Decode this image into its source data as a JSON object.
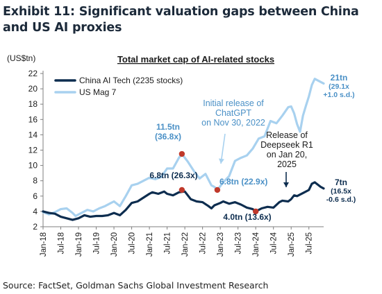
{
  "exhibit": {
    "title": "Exhibit 11: Significant valuation gaps between China and US AI proxies",
    "source": "Source: FactSet, Goldman Sachs Global Investment Research"
  },
  "chart_data": {
    "type": "line",
    "title": "Total market cap of AI-related stocks",
    "ylabel": "(US$tn)",
    "xlabel": "",
    "ylim": [
      2,
      22
    ],
    "yticks": [
      2,
      4,
      6,
      8,
      10,
      12,
      14,
      16,
      18,
      20,
      22
    ],
    "xlim": [
      "2018-01",
      "2025-12"
    ],
    "xticks": [
      "Jan-18",
      "Jul-18",
      "Jan-19",
      "Jul-19",
      "Jan-20",
      "Jul-20",
      "Jan-21",
      "Jul-21",
      "Jan-22",
      "Jul-22",
      "Jan-23",
      "Jul-23",
      "Jan-24",
      "Jul-24",
      "Jan-25",
      "Jul-25"
    ],
    "grid": false,
    "legend_position": "top-left",
    "series": [
      {
        "name": "China AI Tech (2235 stocks)",
        "color": "#0d2d4f",
        "points": [
          [
            "2018-01",
            4.0
          ],
          [
            "2018-03",
            3.8
          ],
          [
            "2018-05",
            3.7
          ],
          [
            "2018-07",
            3.3
          ],
          [
            "2018-09",
            3.1
          ],
          [
            "2018-11",
            2.9
          ],
          [
            "2019-01",
            3.1
          ],
          [
            "2019-03",
            3.5
          ],
          [
            "2019-05",
            3.3
          ],
          [
            "2019-07",
            3.4
          ],
          [
            "2019-09",
            3.4
          ],
          [
            "2019-11",
            3.5
          ],
          [
            "2020-01",
            3.8
          ],
          [
            "2020-03",
            3.5
          ],
          [
            "2020-05",
            4.2
          ],
          [
            "2020-07",
            5.1
          ],
          [
            "2020-09",
            5.3
          ],
          [
            "2020-11",
            5.8
          ],
          [
            "2021-01",
            6.3
          ],
          [
            "2021-02",
            6.5
          ],
          [
            "2021-04",
            6.3
          ],
          [
            "2021-06",
            6.6
          ],
          [
            "2021-07",
            6.3
          ],
          [
            "2021-09",
            6.1
          ],
          [
            "2021-11",
            6.5
          ],
          [
            "2022-01",
            6.6
          ],
          [
            "2022-03",
            5.6
          ],
          [
            "2022-05",
            5.3
          ],
          [
            "2022-07",
            5.2
          ],
          [
            "2022-09",
            4.7
          ],
          [
            "2022-10",
            4.4
          ],
          [
            "2022-11",
            4.8
          ],
          [
            "2023-01",
            5.1
          ],
          [
            "2023-02",
            5.3
          ],
          [
            "2023-04",
            5.0
          ],
          [
            "2023-06",
            5.2
          ],
          [
            "2023-08",
            4.9
          ],
          [
            "2023-10",
            4.5
          ],
          [
            "2023-12",
            4.3
          ],
          [
            "2024-01",
            4.0
          ],
          [
            "2024-03",
            4.4
          ],
          [
            "2024-05",
            4.6
          ],
          [
            "2024-07",
            4.5
          ],
          [
            "2024-09",
            5.2
          ],
          [
            "2024-10",
            5.4
          ],
          [
            "2024-12",
            5.3
          ],
          [
            "2025-01",
            5.6
          ],
          [
            "2025-02",
            6.1
          ],
          [
            "2025-03",
            6.0
          ],
          [
            "2025-05",
            6.4
          ],
          [
            "2025-07",
            6.8
          ],
          [
            "2025-08",
            7.6
          ],
          [
            "2025-09",
            7.8
          ],
          [
            "2025-11",
            7.2
          ],
          [
            "2025-12",
            7.0
          ]
        ]
      },
      {
        "name": "US Mag 7",
        "color": "#a8d1ef",
        "points": [
          [
            "2018-01",
            3.9
          ],
          [
            "2018-03",
            3.6
          ],
          [
            "2018-05",
            3.9
          ],
          [
            "2018-07",
            4.3
          ],
          [
            "2018-09",
            4.4
          ],
          [
            "2018-11",
            3.8
          ],
          [
            "2018-12",
            3.4
          ],
          [
            "2019-02",
            3.8
          ],
          [
            "2019-04",
            4.2
          ],
          [
            "2019-06",
            4.0
          ],
          [
            "2019-08",
            4.4
          ],
          [
            "2019-10",
            4.7
          ],
          [
            "2019-12",
            5.1
          ],
          [
            "2020-01",
            5.3
          ],
          [
            "2020-03",
            4.7
          ],
          [
            "2020-05",
            6.0
          ],
          [
            "2020-07",
            7.4
          ],
          [
            "2020-09",
            7.6
          ],
          [
            "2020-11",
            8.0
          ],
          [
            "2021-01",
            8.4
          ],
          [
            "2021-03",
            8.2
          ],
          [
            "2021-05",
            8.5
          ],
          [
            "2021-07",
            9.6
          ],
          [
            "2021-09",
            9.6
          ],
          [
            "2021-11",
            11.0
          ],
          [
            "2021-12",
            11.5
          ],
          [
            "2022-02",
            10.5
          ],
          [
            "2022-04",
            9.3
          ],
          [
            "2022-06",
            8.3
          ],
          [
            "2022-08",
            8.9
          ],
          [
            "2022-10",
            7.4
          ],
          [
            "2022-11",
            7.2
          ],
          [
            "2022-12",
            6.8
          ],
          [
            "2023-02",
            7.8
          ],
          [
            "2023-04",
            8.6
          ],
          [
            "2023-06",
            10.6
          ],
          [
            "2023-08",
            11.0
          ],
          [
            "2023-10",
            11.3
          ],
          [
            "2023-12",
            12.2
          ],
          [
            "2024-02",
            13.5
          ],
          [
            "2024-04",
            13.8
          ],
          [
            "2024-06",
            15.8
          ],
          [
            "2024-08",
            15.5
          ],
          [
            "2024-10",
            16.5
          ],
          [
            "2024-12",
            17.6
          ],
          [
            "2025-01",
            17.7
          ],
          [
            "2025-02",
            16.8
          ],
          [
            "2025-03",
            15.4
          ],
          [
            "2025-04",
            14.4
          ],
          [
            "2025-05",
            16.5
          ],
          [
            "2025-06",
            17.8
          ],
          [
            "2025-07",
            19.0
          ],
          [
            "2025-08",
            20.5
          ],
          [
            "2025-09",
            21.3
          ],
          [
            "2025-11",
            20.9
          ],
          [
            "2025-12",
            20.7
          ]
        ]
      }
    ],
    "markers": [
      {
        "date": "2021-12",
        "value": 11.5,
        "color": "#c0392b"
      },
      {
        "date": "2021-12",
        "value": 6.8,
        "color": "#c0392b"
      },
      {
        "date": "2022-12",
        "value": 6.8,
        "color": "#c0392b"
      },
      {
        "date": "2024-01",
        "value": 4.0,
        "color": "#c0392b"
      }
    ],
    "annotations": [
      {
        "id": "us-peak",
        "lines": [
          "11.5tn",
          "(36.8x)"
        ],
        "color": "#4a90c6"
      },
      {
        "id": "china-peak",
        "lines": [
          "6.8tn (26.3x)"
        ],
        "color": "#0d2d4f"
      },
      {
        "id": "us-trough",
        "lines": [
          "6.8tn (22.9x)"
        ],
        "color": "#4a90c6"
      },
      {
        "id": "china-trough",
        "lines": [
          "4.0tn (13.6x)"
        ],
        "color": "#0d2d4f"
      },
      {
        "id": "chatgpt",
        "lines": [
          "Initial release of",
          "ChatGPT",
          "on Nov 30, 2022"
        ],
        "color": "#4a90c6"
      },
      {
        "id": "deepseek",
        "lines": [
          "Release of",
          "Deepseek R1",
          "on Jan 20,",
          "2025"
        ],
        "color": "#1b1b1b"
      },
      {
        "id": "us-latest",
        "lines": [
          "21tn",
          "(29.1x",
          "+1.0 s.d.)"
        ],
        "color": "#4a90c6"
      },
      {
        "id": "china-latest",
        "lines": [
          "7tn",
          "(16.5x",
          "-0.6 s.d.)"
        ],
        "color": "#0d2d4f"
      }
    ]
  }
}
